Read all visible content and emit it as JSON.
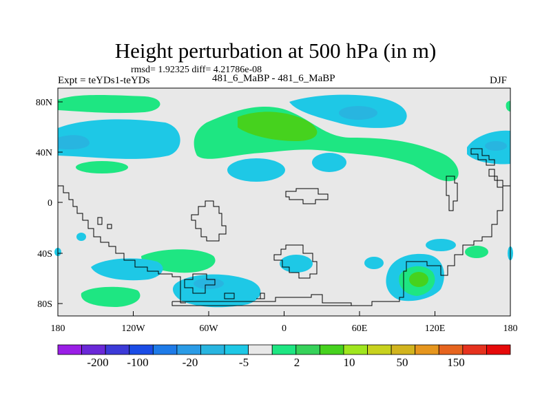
{
  "title": "Height perturbation at 500 hPa (in m)",
  "stats_line": "rmsd= 1.92325 diff= 4.21786e-08",
  "experiment_label": "Expt = teYDs1-teYDs",
  "experiment_name": "481_6_MaBP - 481_6_MaBP",
  "season": "DJF",
  "axes": {
    "x_ticks": [
      "180",
      "120W",
      "60W",
      "0",
      "60E",
      "120E",
      "180"
    ],
    "y_ticks": [
      "80N",
      "40N",
      "0",
      "40S",
      "80S"
    ]
  },
  "colorbar": {
    "colors": [
      "#9a1ee6",
      "#6a28d8",
      "#3c3ad8",
      "#1a4ce6",
      "#1e7be8",
      "#2a9be6",
      "#28b5e0",
      "#1ec8e6",
      "#e8e8e8",
      "#1ee682",
      "#36d25a",
      "#46d21e",
      "#a0e61e",
      "#c8d21e",
      "#d2b41e",
      "#e6961e",
      "#e6641e",
      "#e6321e",
      "#e60a0a"
    ],
    "labels": [
      "-200",
      "-100",
      "-20",
      "-5",
      "2",
      "10",
      "50",
      "150"
    ]
  },
  "colors": {
    "background": "#e8e8e8",
    "positive": "#1ee682",
    "positive_strong": "#46d21e",
    "negative": "#1ec8e6",
    "negative_strong": "#28b5e0"
  }
}
